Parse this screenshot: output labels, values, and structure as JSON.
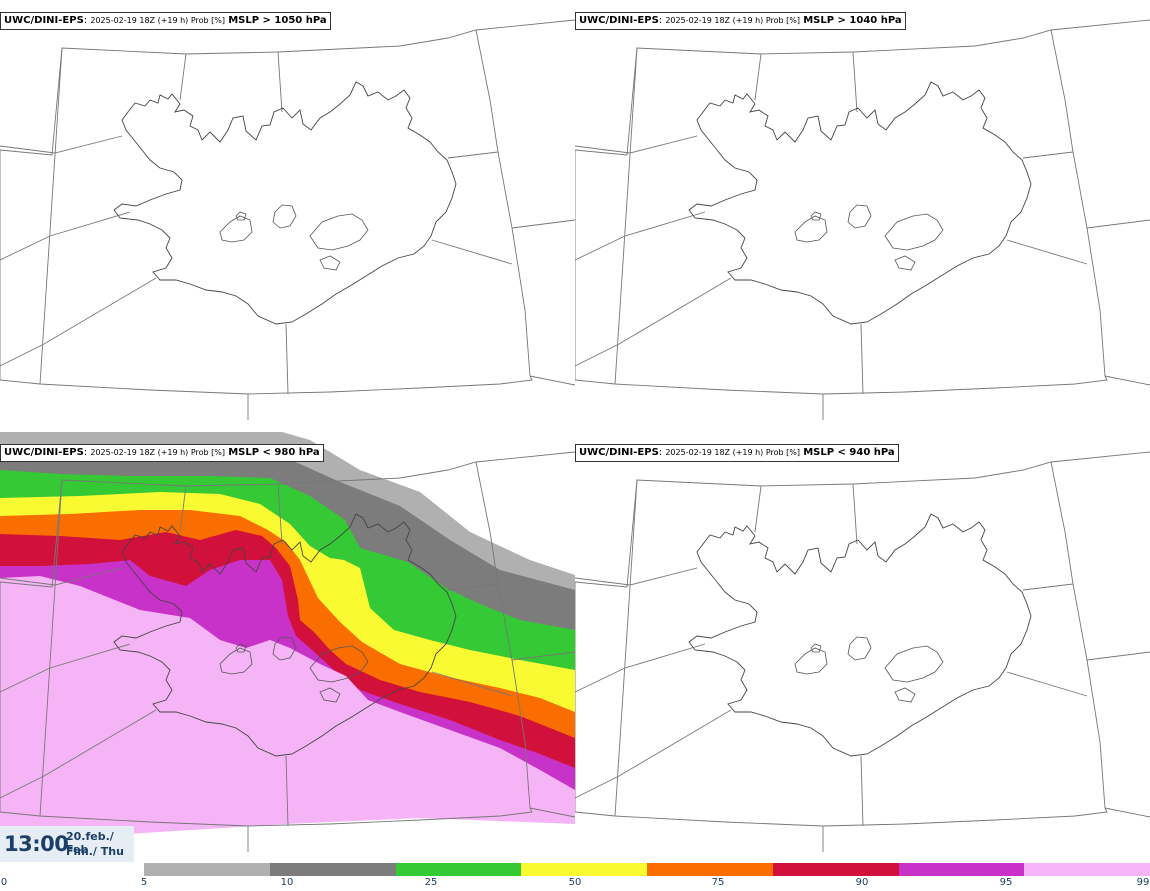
{
  "panels": [
    {
      "model": "UWC/DINI-EPS",
      "run_info": "2025-02-19 18Z (+19 h) Prob [%]",
      "variable": "MSLP > 1050 hPa",
      "filled": false
    },
    {
      "model": "UWC/DINI-EPS",
      "run_info": "2025-02-19 18Z (+19 h) Prob [%]",
      "variable": "MSLP > 1040 hPa",
      "filled": false
    },
    {
      "model": "UWC/DINI-EPS",
      "run_info": "2025-02-19 18Z (+19 h) Prob [%]",
      "variable": "MSLP < 980 hPa",
      "filled": true
    },
    {
      "model": "UWC/DINI-EPS",
      "run_info": "2025-02-19 18Z (+19 h) Prob [%]",
      "variable": "MSLP < 940 hPa",
      "filled": false
    }
  ],
  "valid_time": {
    "hour": "13:00",
    "date_line1": "20.feb./ Feb",
    "date_line2": "Fim./ Thu"
  },
  "legend": {
    "ticks": [
      "0",
      "5",
      "10",
      "25",
      "50",
      "75",
      "90",
      "95",
      "99"
    ],
    "colors": [
      "#b0b0b0",
      "#7c7c7c",
      "#35c935",
      "#fafa32",
      "#fa6e00",
      "#d2103c",
      "#c832c8",
      "#f5b4f5"
    ]
  }
}
